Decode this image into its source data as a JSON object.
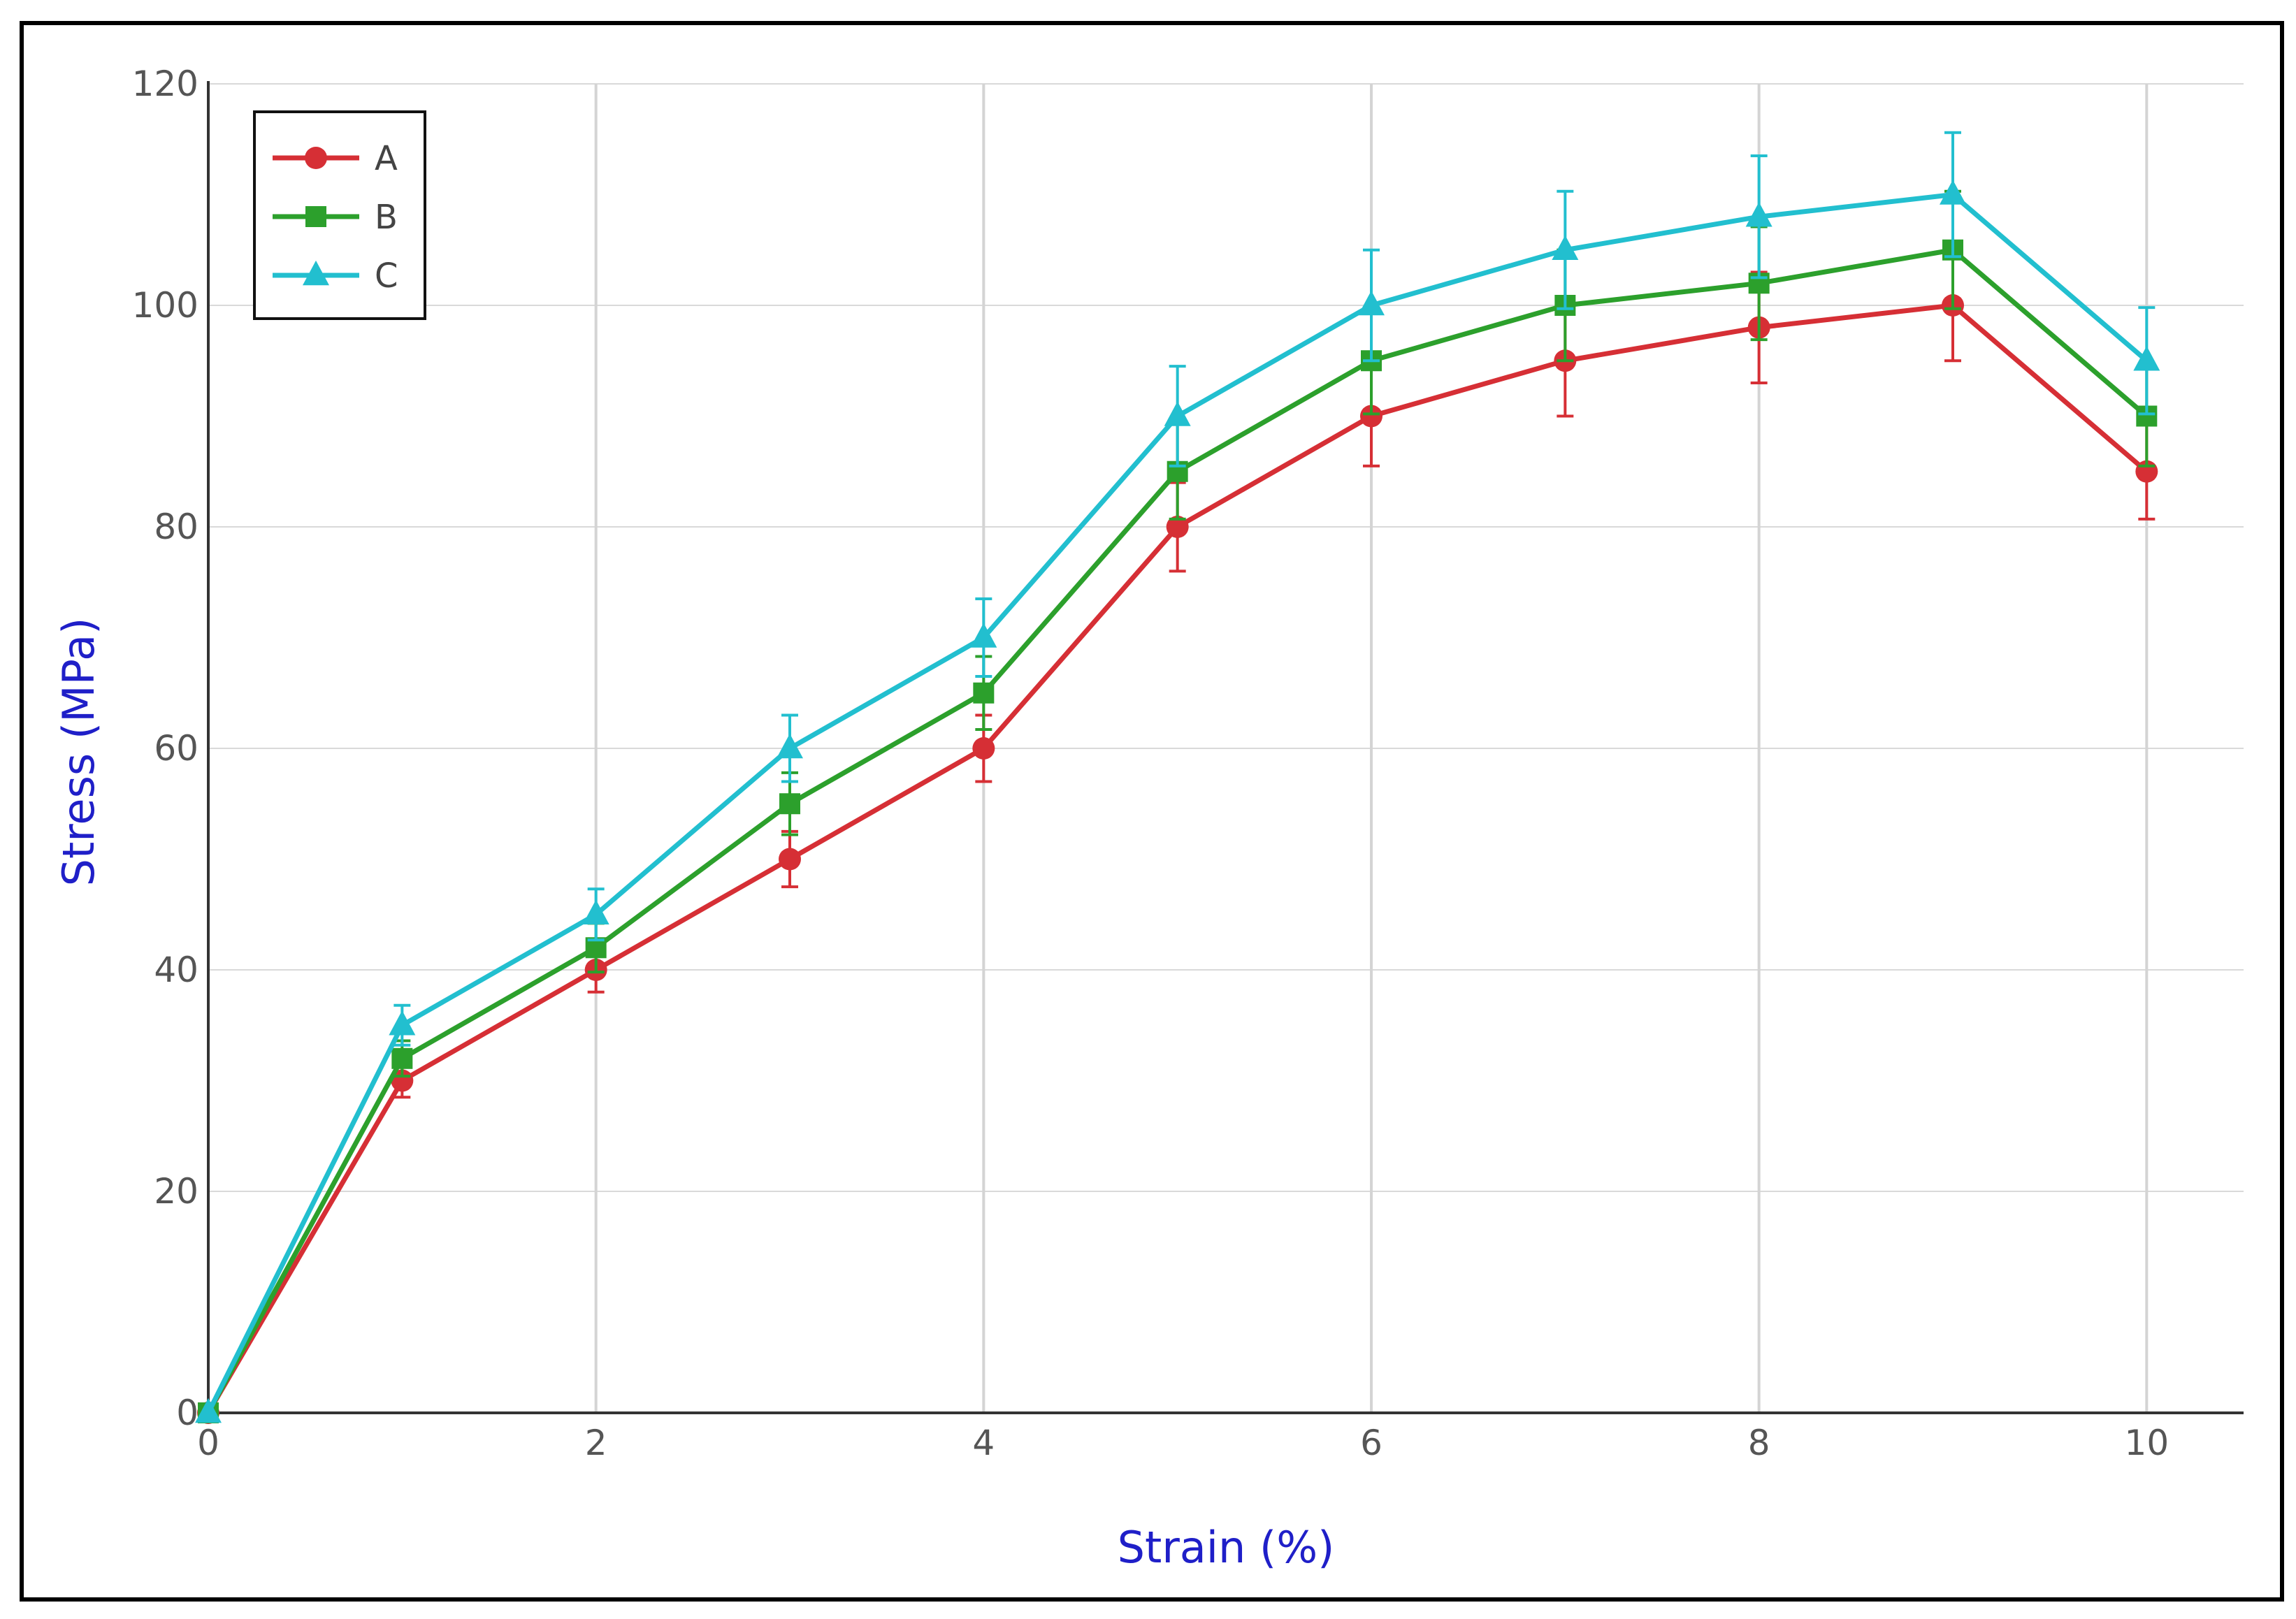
{
  "chart_data": {
    "type": "line",
    "xlabel": "Strain (%)",
    "ylabel": "Stress (MPa)",
    "xlim": [
      0,
      10.5
    ],
    "ylim": [
      0,
      120
    ],
    "x_ticks": [
      "0",
      "2",
      "4",
      "6",
      "8",
      "10"
    ],
    "y_ticks": [
      "0",
      "20",
      "40",
      "60",
      "80",
      "100",
      "120"
    ],
    "grid": true,
    "legend_position": "top-left",
    "x": [
      0,
      1,
      2,
      3,
      4,
      5,
      6,
      7,
      8,
      9,
      10
    ],
    "series": [
      {
        "name": "A",
        "color": "#d62f35",
        "marker": "circle",
        "values": [
          0,
          30,
          40,
          50,
          60,
          80,
          90,
          95,
          98,
          100,
          85
        ],
        "error": [
          0,
          1.5,
          2,
          2.5,
          3,
          4,
          4.5,
          5,
          5,
          5,
          4.3
        ]
      },
      {
        "name": "B",
        "color": "#2ca02c",
        "marker": "square",
        "values": [
          0,
          32,
          42,
          55,
          65,
          85,
          95,
          100,
          102,
          105,
          90
        ],
        "error": [
          0,
          1.6,
          2.2,
          2.8,
          3.3,
          4.3,
          4.8,
          5,
          5.1,
          5.3,
          4.5
        ]
      },
      {
        "name": "C",
        "color": "#22bfcf",
        "marker": "triangle",
        "values": [
          0,
          35,
          45,
          60,
          70,
          90,
          100,
          105,
          108,
          110,
          95
        ],
        "error": [
          0,
          1.8,
          2.3,
          3,
          3.5,
          4.5,
          5,
          5.3,
          5.5,
          5.6,
          4.8
        ]
      }
    ]
  }
}
